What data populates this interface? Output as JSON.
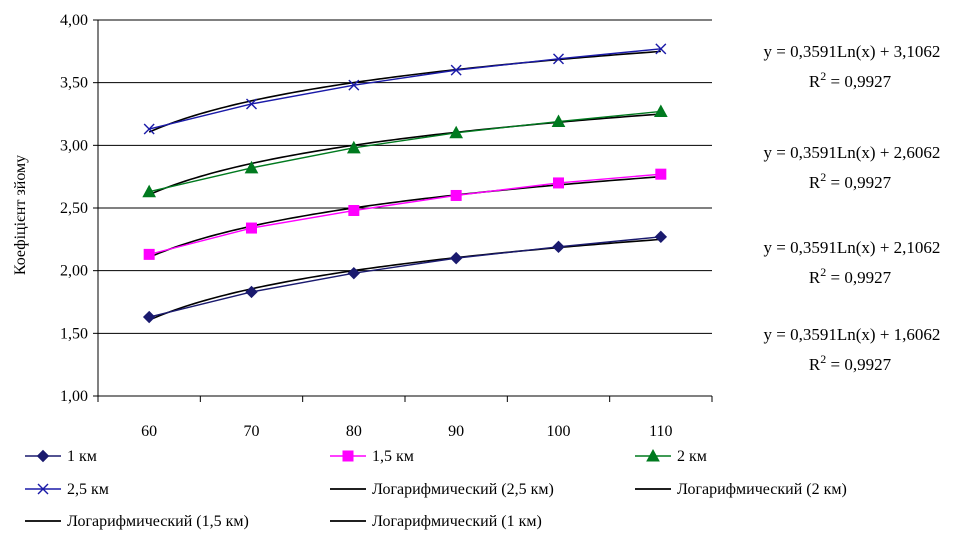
{
  "chart_data": {
    "type": "line",
    "title": "",
    "xlabel": "",
    "ylabel": "Коефіцієнт зйому",
    "x": [
      60,
      70,
      80,
      90,
      100,
      110
    ],
    "x_tick_labels": [
      "60",
      "70",
      "80",
      "90",
      "100",
      "110"
    ],
    "y_tick_labels": [
      "1,00",
      "1,50",
      "2,00",
      "2,50",
      "3,00",
      "3,50",
      "4,00"
    ],
    "xlim": [
      55,
      115
    ],
    "ylim": [
      1.0,
      4.0
    ],
    "grid": "horizontal",
    "legend_position": "bottom",
    "series": [
      {
        "name": "1 км",
        "values": [
          1.63,
          1.83,
          1.98,
          2.1,
          2.19,
          2.27
        ],
        "color": "#1a1a6e",
        "marker": "diamond"
      },
      {
        "name": "1,5 км",
        "values": [
          2.13,
          2.34,
          2.48,
          2.6,
          2.7,
          2.77
        ],
        "color": "#ff00ff",
        "marker": "square"
      },
      {
        "name": "2 км",
        "values": [
          2.63,
          2.82,
          2.98,
          3.1,
          3.19,
          3.27
        ],
        "color": "#007a1f",
        "marker": "triangle"
      },
      {
        "name": "2,5 км",
        "values": [
          3.13,
          3.33,
          3.48,
          3.6,
          3.69,
          3.77
        ],
        "color": "#1a1aa8",
        "marker": "x"
      }
    ],
    "trendlines": [
      {
        "name": "Логарифмический (2,5 км)",
        "slope": 0.3591,
        "intercept": 3.1062,
        "color": "#000000"
      },
      {
        "name": "Логарифмический (2 км)",
        "slope": 0.3591,
        "intercept": 2.6062,
        "color": "#000000"
      },
      {
        "name": "Логарифмический (1,5 км)",
        "slope": 0.3591,
        "intercept": 2.1062,
        "color": "#000000"
      },
      {
        "name": "Логарифмический (1 км)",
        "slope": 0.3591,
        "intercept": 1.6062,
        "color": "#000000"
      }
    ],
    "annotations": [
      {
        "equation": "y = 0,3591Ln(x) + 3,1062",
        "r2_label": "R",
        "r2_sup": "2",
        "r2_value": " = 0,9927"
      },
      {
        "equation": "y = 0,3591Ln(x) + 2,6062",
        "r2_label": "R",
        "r2_sup": "2",
        "r2_value": " = 0,9927"
      },
      {
        "equation": "y = 0,3591Ln(x) + 2,1062",
        "r2_label": "R",
        "r2_sup": "2",
        "r2_value": " = 0,9927"
      },
      {
        "equation": "y = 0,3591Ln(x) + 1,6062",
        "r2_label": "R",
        "r2_sup": "2",
        "r2_value": " = 0,9927"
      }
    ],
    "legend": [
      {
        "label": "1 км",
        "kind": "series",
        "ref": 0
      },
      {
        "label": "1,5 км",
        "kind": "series",
        "ref": 1
      },
      {
        "label": "2 км",
        "kind": "series",
        "ref": 2
      },
      {
        "label": "2,5 км",
        "kind": "series",
        "ref": 3
      },
      {
        "label": "Логарифмический (2,5 км)",
        "kind": "trend",
        "ref": 0
      },
      {
        "label": "Логарифмический (2 км)",
        "kind": "trend",
        "ref": 1
      },
      {
        "label": "Логарифмический (1,5 км)",
        "kind": "trend",
        "ref": 2
      },
      {
        "label": "Логарифмический (1 км)",
        "kind": "trend",
        "ref": 3
      }
    ]
  }
}
